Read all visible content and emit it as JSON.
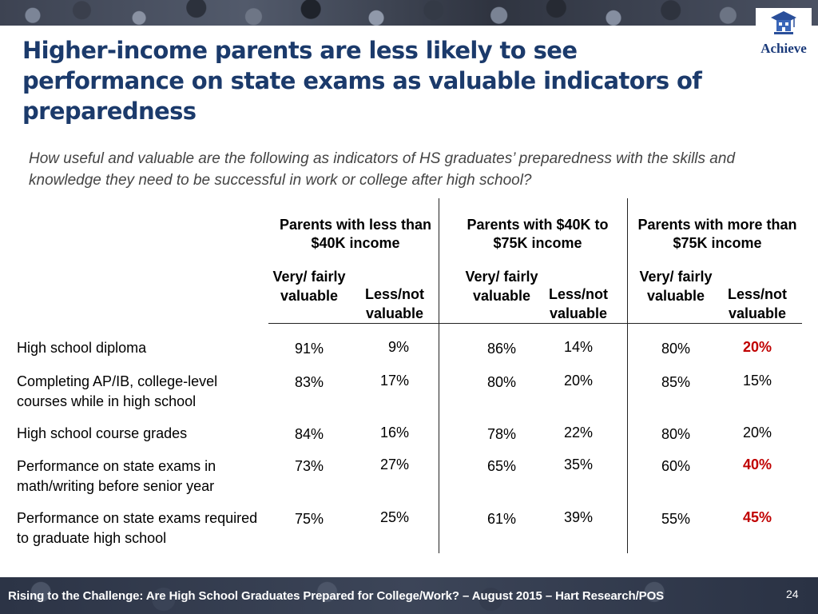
{
  "title": "Higher-income parents are less likely to see performance on state exams as valuable indicators of preparedness",
  "question": "How useful and valuable are the following as indicators of HS graduates’ preparedness with the skills and knowledge they need to be successful in work or college after high school?",
  "logo": {
    "text": "Achieve"
  },
  "groups": [
    {
      "label": "Parents with less than $40K income"
    },
    {
      "label": "Parents with $40K to $75K income"
    },
    {
      "label": "Parents with more than $75K income"
    }
  ],
  "subheaders": {
    "valuable": "Very/ fairly valuable",
    "less": "Less/not valuable"
  },
  "rows": [
    {
      "label": "High school diploma",
      "values": [
        "91%",
        "9%",
        "86%",
        "14%",
        "80%",
        "20%"
      ]
    },
    {
      "label": "Completing AP/IB, college-level courses while in high school",
      "values": [
        "83%",
        "17%",
        "80%",
        "20%",
        "85%",
        "15%"
      ]
    },
    {
      "label": "High school course grades",
      "values": [
        "84%",
        "16%",
        "78%",
        "22%",
        "80%",
        "20%"
      ]
    },
    {
      "label": "Performance on state exams in math/writing before senior year",
      "values": [
        "73%",
        "27%",
        "65%",
        "35%",
        "60%",
        "40%"
      ]
    },
    {
      "label": "Performance on state exams required to graduate high school",
      "values": [
        "75%",
        "25%",
        "61%",
        "39%",
        "55%",
        "45%"
      ]
    }
  ],
  "highlight_color": "#c00000",
  "footer": {
    "text": "Rising to the Challenge:  Are High School Graduates Prepared for College/Work? – August 2015 – Hart Research/POS",
    "page": "24"
  }
}
